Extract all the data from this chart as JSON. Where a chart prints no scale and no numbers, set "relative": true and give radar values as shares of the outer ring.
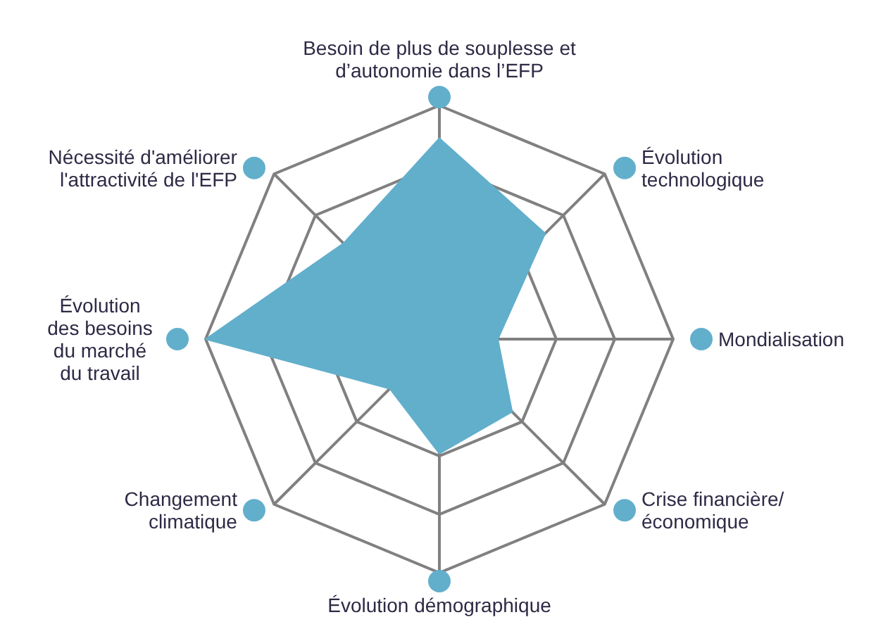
{
  "chart_data": {
    "type": "radar",
    "relative": true,
    "categories": [
      "Besoin de plus de souplesse et d’autonomie dans l’EFP",
      "Évolution technologique",
      "Mondialisation",
      "Crise financière/économique",
      "Évolution démographique",
      "Changement climatique",
      "Évolution des besoins du marché du travail",
      "Nécessité d'améliorer l'attractivité de l'EFP"
    ],
    "series": [
      {
        "color": "#62afcc",
        "values": [
          0.86,
          0.64,
          0.25,
          0.44,
          0.49,
          0.3,
          1,
          0.58
        ]
      }
    ],
    "grid": true
  }
}
